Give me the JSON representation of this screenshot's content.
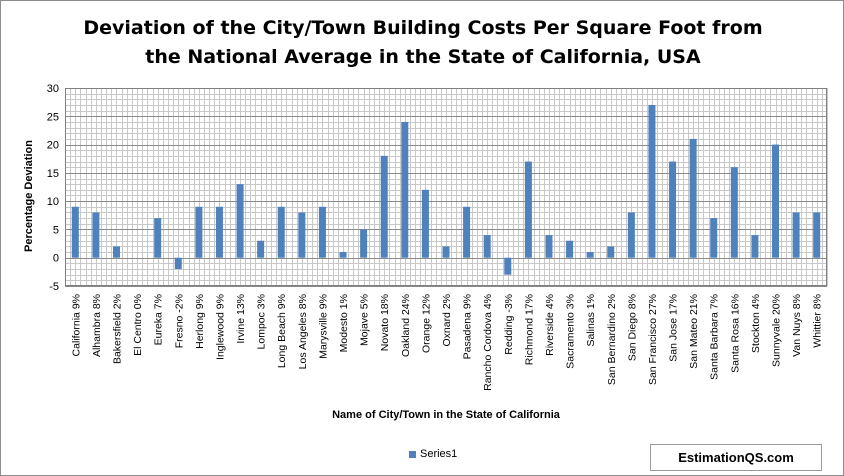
{
  "chart_data": {
    "type": "bar",
    "title_line1": "Deviation of the City/Town Building Costs Per Square Foot from",
    "title_line2": "the National Average in the State of California, USA",
    "xlabel": "Name of City/Town in the State of California",
    "ylabel": "Percentage Deviation",
    "ylim": [
      -5,
      30
    ],
    "yticks": [
      -5,
      0,
      5,
      10,
      15,
      20,
      25,
      30
    ],
    "grid": true,
    "legend_position": "bottom",
    "bar_color": "#4f81bd",
    "categories": [
      "California 9%",
      "Alhambra 8%",
      "Bakersfield 2%",
      "El Centro 0%",
      "Eureka 7%",
      "Fresno -2%",
      "Herlong 9%",
      "Inglewood 9%",
      "Irvine 13%",
      "Lompoc 3%",
      "Long Beach 9%",
      "Los Angeles 8%",
      "Marysville 9%",
      "Modesto 1%",
      "Mojave 5%",
      "Novato 18%",
      "Oakland 24%",
      "Orange 12%",
      "Oxnard 2%",
      "Pasadena 9%",
      "Rancho Cordova 4%",
      "Redding -3%",
      "Richmond 17%",
      "Riverside 4%",
      "Sacramento 3%",
      "Salinas 1%",
      "San Bernardino 2%",
      "San Diego 8%",
      "San Francisco 27%",
      "San Jose 17%",
      "San Mateo 21%",
      "Santa Barbara 7%",
      "Santa Rosa 16%",
      "Stockton 4%",
      "Sunnyvale 20%",
      "Van Nuys 8%",
      "Whittier 8%"
    ],
    "series": [
      {
        "name": "Series1",
        "values": [
          9,
          8,
          2,
          0,
          7,
          -2,
          9,
          9,
          13,
          3,
          9,
          8,
          9,
          1,
          5,
          18,
          24,
          12,
          2,
          9,
          4,
          -3,
          17,
          4,
          3,
          1,
          2,
          8,
          27,
          17,
          21,
          7,
          16,
          4,
          20,
          8,
          8
        ]
      }
    ]
  },
  "watermark": "EstimationQS.com"
}
